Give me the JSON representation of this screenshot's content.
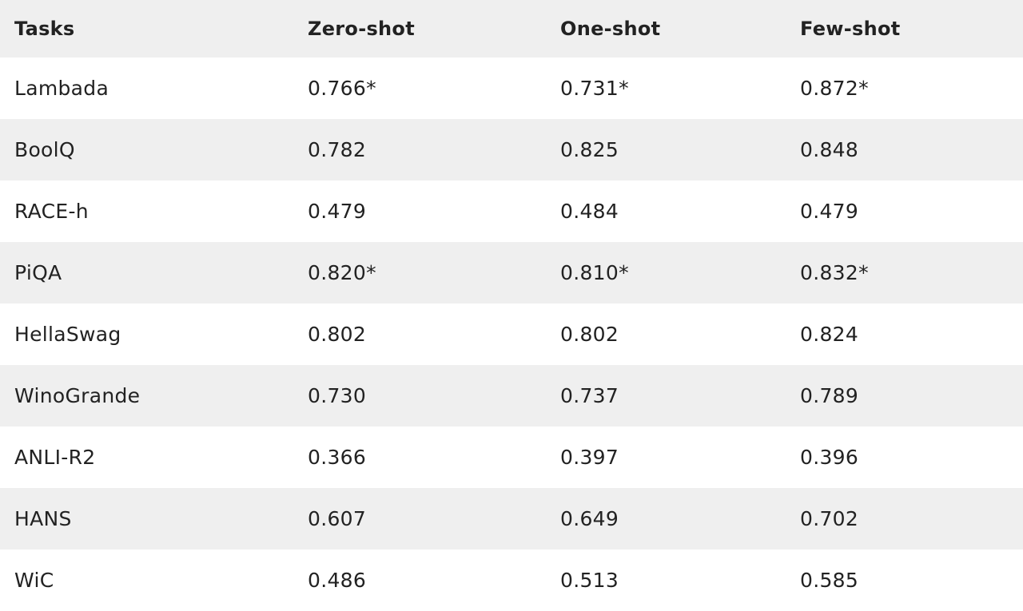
{
  "table": {
    "headers": [
      "Tasks",
      "Zero-shot",
      "One-shot",
      "Few-shot"
    ],
    "rows": [
      [
        "Lambada",
        "0.766*",
        "0.731*",
        "0.872*"
      ],
      [
        "BoolQ",
        "0.782",
        "0.825",
        "0.848"
      ],
      [
        "RACE-h",
        "0.479",
        "0.484",
        "0.479"
      ],
      [
        "PiQA",
        "0.820*",
        "0.810*",
        "0.832*"
      ],
      [
        "HellaSwag",
        "0.802",
        "0.802",
        "0.824"
      ],
      [
        "WinoGrande",
        "0.730",
        "0.737",
        "0.789"
      ],
      [
        "ANLI-R2",
        "0.366",
        "0.397",
        "0.396"
      ],
      [
        "HANS",
        "0.607",
        "0.649",
        "0.702"
      ],
      [
        "WiC",
        "0.486",
        "0.513",
        "0.585"
      ]
    ]
  },
  "colors": {
    "header_bg": "#efefef",
    "stripe_bg": "#efefef",
    "row_bg": "#ffffff",
    "text": "#222222"
  }
}
